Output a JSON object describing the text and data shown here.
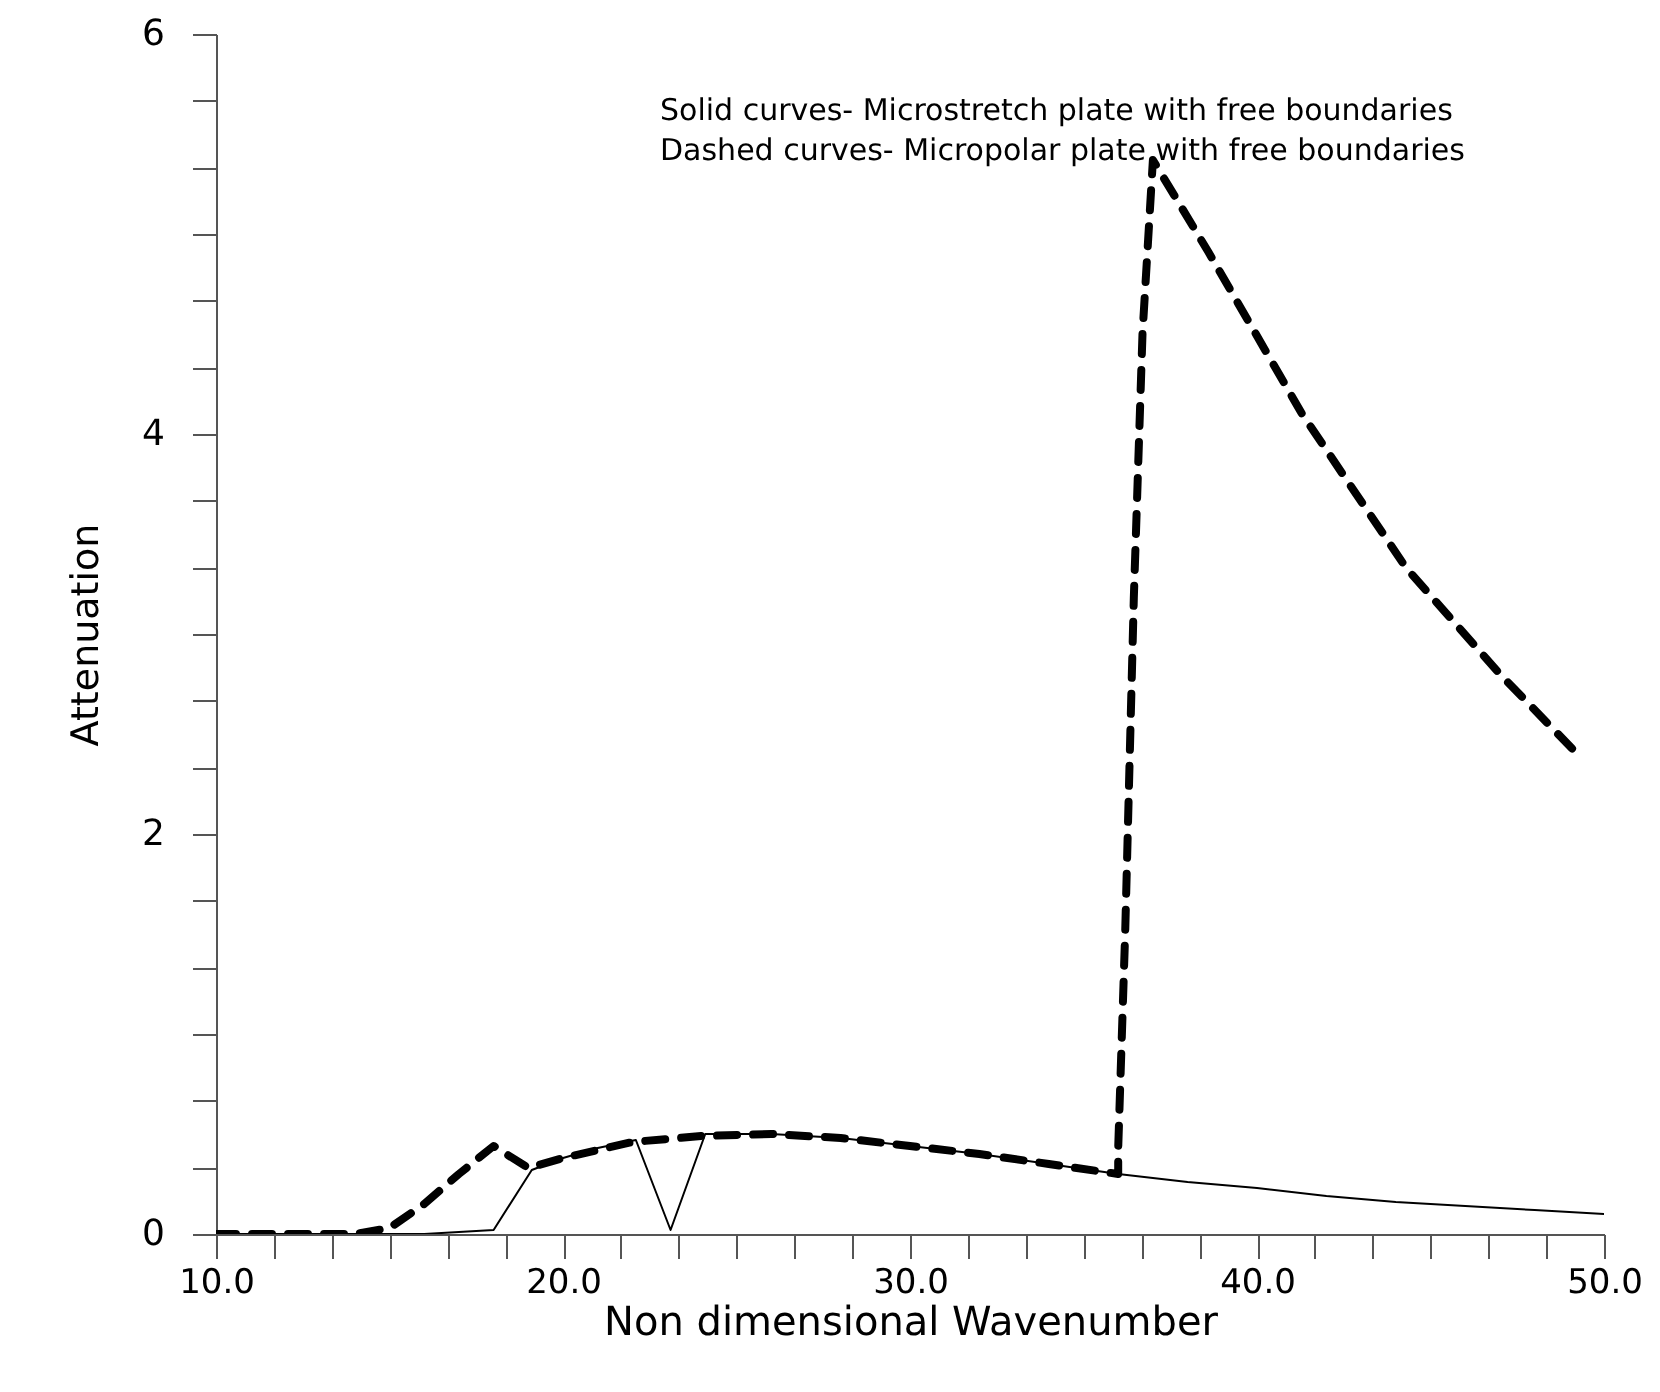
{
  "chart_data": {
    "type": "line",
    "xlabel": "Non dimensional Wavenumber",
    "ylabel": "Attenuation",
    "annotations": [
      "Solid curves- Microstretch plate with free boundaries",
      "Dashed curves- Micropolar plate with free boundaries"
    ],
    "xlim": [
      10,
      50
    ],
    "ylim": [
      0,
      6
    ],
    "xticks": [
      {
        "value": 10,
        "label": "10.0"
      },
      {
        "value": 11.667,
        "label": null
      },
      {
        "value": 13.333,
        "label": null
      },
      {
        "value": 15,
        "label": null
      },
      {
        "value": 16.667,
        "label": null
      },
      {
        "value": 18.333,
        "label": null
      },
      {
        "value": 20,
        "label": "20.0"
      },
      {
        "value": 21.667,
        "label": null
      },
      {
        "value": 23.333,
        "label": null
      },
      {
        "value": 25,
        "label": null
      },
      {
        "value": 26.667,
        "label": null
      },
      {
        "value": 28.333,
        "label": null
      },
      {
        "value": 30,
        "label": "30.0"
      },
      {
        "value": 31.667,
        "label": null
      },
      {
        "value": 33.333,
        "label": null
      },
      {
        "value": 35,
        "label": null
      },
      {
        "value": 36.667,
        "label": null
      },
      {
        "value": 38.333,
        "label": null
      },
      {
        "value": 40,
        "label": "40.0"
      },
      {
        "value": 41.667,
        "label": null
      },
      {
        "value": 43.333,
        "label": null
      },
      {
        "value": 45,
        "label": null
      },
      {
        "value": 46.667,
        "label": null
      },
      {
        "value": 48.333,
        "label": null
      },
      {
        "value": 50,
        "label": "50.0"
      }
    ],
    "yticks": [
      0,
      {
        "value": 0.333,
        "label": null
      },
      {
        "value": 0.667,
        "label": null
      },
      {
        "value": 1,
        "label": null
      },
      {
        "value": 1.333,
        "label": null
      },
      {
        "value": 1.667,
        "label": null
      },
      2,
      {
        "value": 2.333,
        "label": null
      },
      {
        "value": 2.667,
        "label": null
      },
      {
        "value": 3,
        "label": null
      },
      {
        "value": 3.333,
        "label": null
      },
      {
        "value": 3.667,
        "label": null
      },
      4,
      {
        "value": 4.333,
        "label": null
      },
      {
        "value": 4.667,
        "label": null
      },
      {
        "value": 5,
        "label": null
      },
      {
        "value": 5.333,
        "label": null
      },
      {
        "value": 5.667,
        "label": null
      },
      6
    ],
    "grid": false,
    "marker": "none",
    "series": [
      {
        "color": "#000000",
        "line_style": "solid",
        "x": [
          10,
          14,
          16,
          18,
          19.1,
          20,
          21,
          22.1,
          23.1,
          24.1,
          25,
          26,
          28,
          30,
          32,
          34,
          36,
          38,
          40,
          42,
          44,
          46,
          48,
          50
        ],
        "values": [
          0,
          0,
          0,
          0.02,
          0.32,
          0.38,
          0.43,
          0.47,
          0.02,
          0.5,
          0.5,
          0.5,
          0.48,
          0.44,
          0.4,
          0.35,
          0.3,
          0.26,
          0.23,
          0.19,
          0.16,
          0.14,
          0.12,
          0.1
        ]
      },
      {
        "color": "#000000",
        "line_style": "dashed",
        "x": [
          10,
          14,
          15,
          16,
          17,
          18,
          19,
          20,
          22,
          24,
          26,
          28,
          30,
          32,
          34,
          36,
          36.0,
          36.2,
          36.45,
          36.7,
          37.0,
          38.6,
          41.3,
          44.3,
          47,
          49.4
        ],
        "values": [
          0,
          0,
          0.03,
          0.15,
          0.3,
          0.44,
          0.33,
          0.38,
          0.46,
          0.49,
          0.5,
          0.48,
          0.44,
          0.4,
          0.35,
          0.3,
          0.43,
          1.5,
          3.18,
          4.5,
          5.37,
          4.91,
          4.1,
          3.33,
          2.8,
          2.37
        ]
      }
    ]
  }
}
